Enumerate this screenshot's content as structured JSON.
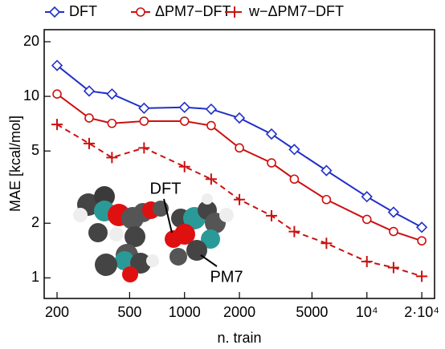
{
  "chart_data": {
    "type": "line",
    "xlabel": "n. train",
    "ylabel": "MAE [kcal/mol]",
    "xscale": "log",
    "yscale": "log",
    "x": [
      200,
      300,
      400,
      600,
      1000,
      1400,
      2000,
      3000,
      4000,
      6000,
      10000,
      14000,
      20000
    ],
    "series": [
      {
        "name": "DFT",
        "color": "#2030c8",
        "marker": "diamond",
        "linestyle": "solid",
        "values": [
          14.8,
          10.7,
          10.3,
          8.6,
          8.7,
          8.5,
          7.6,
          6.2,
          5.1,
          3.9,
          2.8,
          2.3,
          1.9
        ]
      },
      {
        "name": "ΔPM7−DFT",
        "color": "#cc1010",
        "marker": "circle",
        "linestyle": "solid",
        "values": [
          10.3,
          7.6,
          7.1,
          7.3,
          7.3,
          6.9,
          5.2,
          4.3,
          3.5,
          2.7,
          2.1,
          1.8,
          1.6
        ]
      },
      {
        "name": "w−ΔPM7−DFT",
        "color": "#cc1010",
        "marker": "plus",
        "linestyle": "dashed",
        "values": [
          7.0,
          5.5,
          4.6,
          5.2,
          4.1,
          3.5,
          2.7,
          2.2,
          1.8,
          1.55,
          1.23,
          1.14,
          1.02
        ]
      }
    ],
    "xlim": [
      170,
      23500
    ],
    "ylim": [
      0.77,
      23.3
    ],
    "xticks": [
      200,
      500,
      1000,
      2000,
      5000,
      {
        "value": 10000,
        "label": "10⁴"
      },
      {
        "value": 20000,
        "label": "2·10⁴"
      }
    ],
    "yticks": [
      1,
      2,
      5,
      10,
      20
    ],
    "annotations": [
      "DFT",
      "PM7"
    ]
  }
}
